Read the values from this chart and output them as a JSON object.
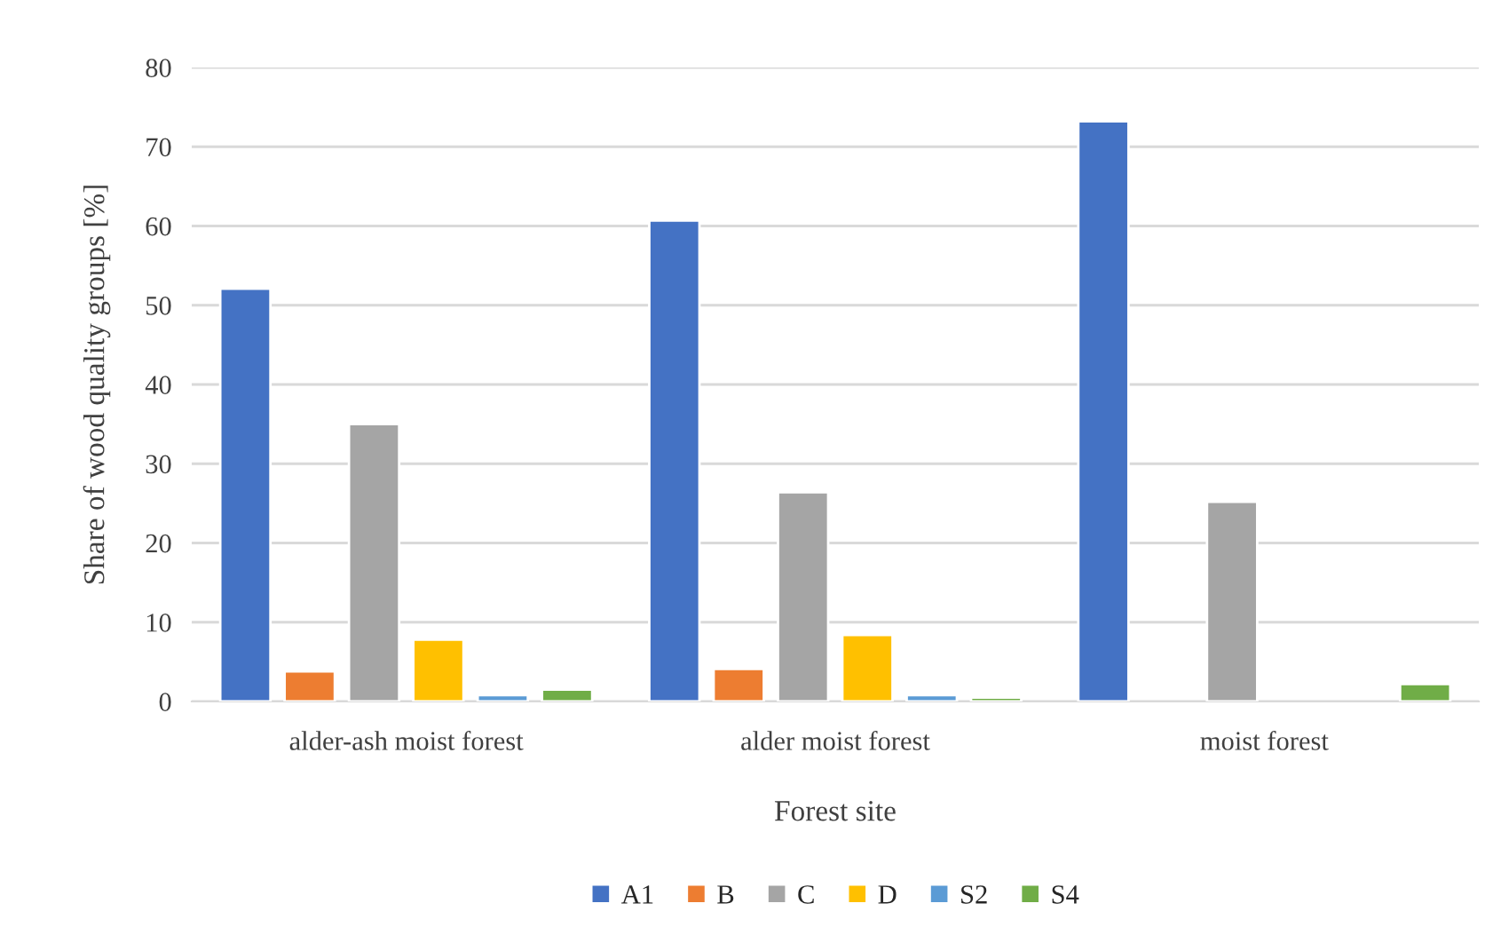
{
  "chart_data": {
    "type": "bar",
    "xlabel": "Forest site",
    "ylabel": "Share of wood quality groups [%]",
    "categories": [
      "alder-ash moist forest",
      "alder moist forest",
      "moist forest"
    ],
    "series": [
      {
        "name": "A1",
        "color": "#4472c4",
        "values": [
          52.1,
          60.7,
          73.2
        ]
      },
      {
        "name": "B",
        "color": "#ed7d31",
        "values": [
          3.8,
          4.1,
          null
        ]
      },
      {
        "name": "C",
        "color": "#a5a5a5",
        "values": [
          35.0,
          26.4,
          25.2
        ]
      },
      {
        "name": "D",
        "color": "#ffc000",
        "values": [
          7.8,
          8.4,
          null
        ]
      },
      {
        "name": "S2",
        "color": "#5b9bd5",
        "values": [
          0.8,
          0.8,
          null
        ]
      },
      {
        "name": "S4",
        "color": "#70ad47",
        "values": [
          1.5,
          0.5,
          2.2
        ]
      }
    ],
    "ylim": [
      0,
      80
    ],
    "yticks": [
      0,
      10,
      20,
      30,
      40,
      50,
      60,
      70,
      80
    ],
    "grid": "y",
    "legend": "bottom"
  }
}
